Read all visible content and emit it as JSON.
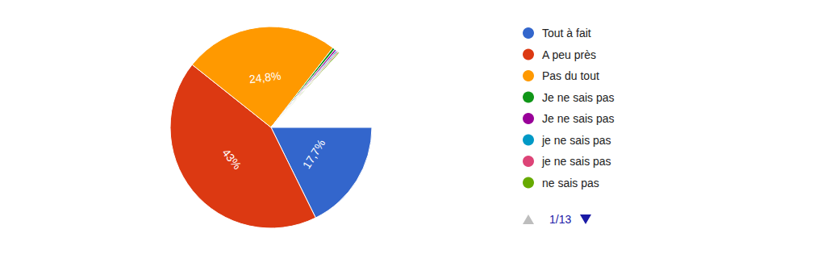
{
  "chart_data": {
    "type": "pie",
    "categories": [
      "Tout à fait",
      "A peu près",
      "Pas du tout",
      "Je ne sais pas",
      "Je ne sais pas",
      "je ne sais pas",
      "je ne sais pas",
      "ne sais pas"
    ],
    "values": [
      17.7,
      43,
      24.8,
      0.4,
      0.3,
      0.2,
      0.2,
      0.2
    ],
    "value_labels": [
      "17,7%",
      "43%",
      "24,8%",
      null,
      null,
      null,
      null,
      null
    ],
    "colors": [
      "#3366cc",
      "#dc3912",
      "#ff9900",
      "#109618",
      "#990099",
      "#0099c6",
      "#dd4477",
      "#66aa00"
    ],
    "data_labels": true,
    "legend": "right",
    "annotations": [
      "1/13"
    ]
  }
}
